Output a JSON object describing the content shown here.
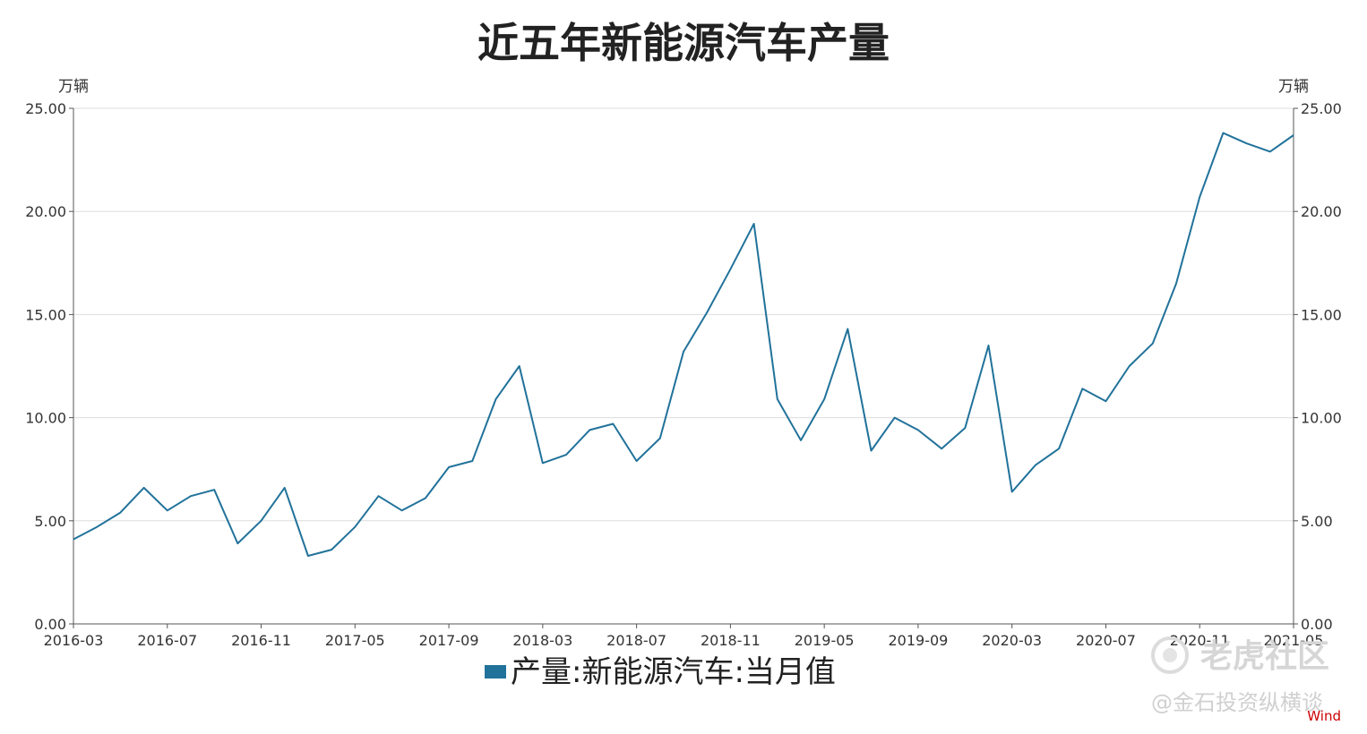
{
  "chart_data": {
    "type": "line",
    "title": "近五年新能源汽车产量",
    "ylabel_left": "万辆",
    "ylabel_right": "万辆",
    "ylim": [
      0,
      25
    ],
    "yticks": [
      "0.00",
      "5.00",
      "10.00",
      "15.00",
      "20.00",
      "25.00"
    ],
    "xtick_labels": [
      "2016-03",
      "2016-07",
      "2016-11",
      "2017-05",
      "2017-09",
      "2018-03",
      "2018-07",
      "2018-11",
      "2019-05",
      "2019-09",
      "2020-03",
      "2020-07",
      "2020-11",
      "2021-05"
    ],
    "grid": true,
    "legend_position": "bottom",
    "series": [
      {
        "name": "产量:新能源汽车:当月值",
        "color": "#21729a",
        "points": [
          [
            "2016-03",
            4.1
          ],
          [
            "2016-04",
            4.7
          ],
          [
            "2016-05",
            5.4
          ],
          [
            "2016-06",
            6.6
          ],
          [
            "2016-07",
            5.5
          ],
          [
            "2016-08",
            6.2
          ],
          [
            "2016-09",
            6.5
          ],
          [
            "2016-10",
            3.9
          ],
          [
            "2016-11",
            5.0
          ],
          [
            "2016-12",
            6.6
          ],
          [
            "2017-03",
            3.3
          ],
          [
            "2017-04",
            3.6
          ],
          [
            "2017-05",
            4.7
          ],
          [
            "2017-06",
            6.2
          ],
          [
            "2017-07",
            5.5
          ],
          [
            "2017-08",
            6.1
          ],
          [
            "2017-09",
            7.6
          ],
          [
            "2017-10",
            7.9
          ],
          [
            "2017-11",
            10.9
          ],
          [
            "2017-12",
            12.5
          ],
          [
            "2018-03",
            7.8
          ],
          [
            "2018-04",
            8.2
          ],
          [
            "2018-05",
            9.4
          ],
          [
            "2018-06",
            9.7
          ],
          [
            "2018-07",
            7.9
          ],
          [
            "2018-08",
            9.0
          ],
          [
            "2018-09",
            13.2
          ],
          [
            "2018-10",
            15.1
          ],
          [
            "2018-11",
            17.2
          ],
          [
            "2018-12",
            19.4
          ],
          [
            "2019-03",
            10.9
          ],
          [
            "2019-04",
            8.9
          ],
          [
            "2019-05",
            10.9
          ],
          [
            "2019-06",
            14.3
          ],
          [
            "2019-07",
            8.4
          ],
          [
            "2019-08",
            10.0
          ],
          [
            "2019-09",
            9.4
          ],
          [
            "2019-10",
            8.5
          ],
          [
            "2019-11",
            9.5
          ],
          [
            "2019-12",
            13.5
          ],
          [
            "2020-03",
            6.4
          ],
          [
            "2020-04",
            7.7
          ],
          [
            "2020-05",
            8.5
          ],
          [
            "2020-06",
            11.4
          ],
          [
            "2020-07",
            10.8
          ],
          [
            "2020-08",
            12.5
          ],
          [
            "2020-09",
            13.6
          ],
          [
            "2020-10",
            16.5
          ],
          [
            "2020-11",
            20.7
          ],
          [
            "2020-12",
            23.8
          ],
          [
            "2021-03",
            23.3
          ],
          [
            "2021-04",
            22.9
          ],
          [
            "2021-05",
            23.7
          ]
        ]
      }
    ]
  },
  "watermark": {
    "brand": "老虎社区",
    "handle": "@金石投资纵横谈"
  },
  "source": "Wind"
}
